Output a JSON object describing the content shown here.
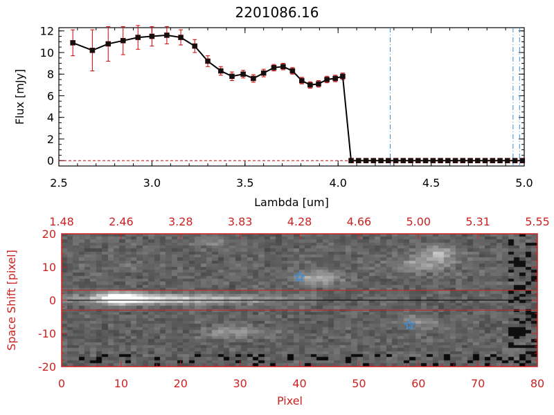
{
  "title": "2201086.16",
  "chart_data": [
    {
      "type": "line",
      "xlabel": "Lambda [um]",
      "ylabel": "Flux [mJy]",
      "xlim": [
        2.5,
        5.0
      ],
      "ylim": [
        -0.5,
        12.3
      ],
      "x_ticks": [
        "2.5",
        "3.0",
        "3.5",
        "4.0",
        "4.5",
        "5.0"
      ],
      "x_tick_values": [
        2.5,
        3.0,
        3.5,
        4.0,
        4.5,
        5.0
      ],
      "y_ticks": [
        "0",
        "2",
        "4",
        "6",
        "8",
        "10",
        "12"
      ],
      "y_tick_values": [
        0,
        2,
        4,
        6,
        8,
        10,
        12
      ],
      "series": [
        {
          "color": "#000000",
          "error_color": "#cc0000",
          "x": [
            2.575,
            2.68,
            2.765,
            2.845,
            2.925,
            3.0,
            3.08,
            3.155,
            3.23,
            3.3,
            3.37,
            3.43,
            3.49,
            3.545,
            3.6,
            3.655,
            3.705,
            3.755,
            3.805,
            3.85,
            3.895,
            3.94,
            3.985,
            4.025,
            4.07,
            4.11,
            4.15,
            4.19,
            4.23,
            4.27,
            4.31,
            4.35,
            4.39,
            4.43,
            4.47,
            4.51,
            4.55,
            4.59,
            4.63,
            4.67,
            4.71,
            4.75,
            4.79,
            4.83,
            4.87,
            4.91,
            4.95,
            4.99
          ],
          "y": [
            10.9,
            10.2,
            10.8,
            11.1,
            11.4,
            11.5,
            11.6,
            11.4,
            10.6,
            9.2,
            8.3,
            7.8,
            8.0,
            7.6,
            8.1,
            8.6,
            8.7,
            8.3,
            7.4,
            7.0,
            7.1,
            7.5,
            7.6,
            7.8,
            0,
            0,
            0,
            0,
            0,
            0,
            0,
            0,
            0,
            0,
            0,
            0,
            0,
            0,
            0,
            0,
            0,
            0,
            0,
            0,
            0,
            0,
            0,
            0
          ],
          "yerr": [
            1.2,
            1.9,
            1.6,
            1.3,
            1.1,
            0.9,
            0.8,
            0.7,
            0.6,
            0.5,
            0.4,
            0.4,
            0.35,
            0.35,
            0.35,
            0.3,
            0.3,
            0.3,
            0.3,
            0.3,
            0.3,
            0.3,
            0.3,
            0.3,
            0,
            0,
            0,
            0,
            0,
            0,
            0,
            0,
            0,
            0,
            0,
            0,
            0,
            0,
            0,
            0,
            0,
            0,
            0,
            0,
            0,
            0,
            0,
            0
          ]
        }
      ],
      "vlines": [
        {
          "x": 4.28,
          "color": "#3a8fd8",
          "style": "dashed"
        },
        {
          "x": 4.94,
          "color": "#3a8fd8",
          "style": "dashed"
        },
        {
          "x": 4.975,
          "color": "#3a8fd8",
          "style": "dashed"
        }
      ],
      "hline": {
        "y": 0,
        "color": "#cc0000",
        "style": "dashed"
      }
    },
    {
      "type": "heatmap",
      "colormap": "grayscale",
      "xlabel": "Pixel",
      "ylabel": "Space Shift [pixel]",
      "axis_color": "#cc2222",
      "xlim": [
        0,
        80
      ],
      "ylim": [
        -20,
        20
      ],
      "x_ticks": [
        "0",
        "10",
        "20",
        "30",
        "40",
        "50",
        "60",
        "70",
        "80"
      ],
      "x_tick_values": [
        0,
        10,
        20,
        30,
        40,
        50,
        60,
        70,
        80
      ],
      "y_ticks": [
        "-20",
        "-10",
        "0",
        "10",
        "20"
      ],
      "y_tick_values": [
        -20,
        -10,
        0,
        10,
        20
      ],
      "top_ticks": [
        "1.48",
        "2.46",
        "3.28",
        "3.83",
        "4.28",
        "4.66",
        "5.00",
        "5.31",
        "5.55"
      ],
      "top_tick_values": [
        0,
        10,
        20,
        30,
        40,
        50,
        60,
        70,
        80
      ],
      "hlines": [
        {
          "y": 3,
          "color": "#cc2222"
        },
        {
          "y": 0,
          "color": "#000000"
        },
        {
          "y": -3,
          "color": "#cc2222"
        }
      ],
      "stars": [
        {
          "x": 40,
          "y": 7,
          "color": "#3a8fd8"
        },
        {
          "x": 58.5,
          "y": -7.5,
          "color": "#3a8fd8"
        }
      ]
    }
  ]
}
